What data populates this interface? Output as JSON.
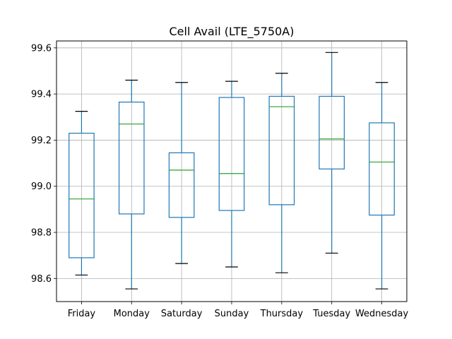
{
  "chart_data": {
    "type": "box",
    "title": "Cell Avail (LTE_5750A)",
    "xlabel": "",
    "ylabel": "",
    "ylim": [
      98.5,
      99.63
    ],
    "yticks": [
      98.6,
      98.8,
      99.0,
      99.2,
      99.4,
      99.6
    ],
    "grid": true,
    "categories": [
      "Friday",
      "Monday",
      "Saturday",
      "Sunday",
      "Thursday",
      "Tuesday",
      "Wednesday"
    ],
    "boxes": [
      {
        "category": "Friday",
        "whisker_low": 98.615,
        "q1": 98.69,
        "median": 98.945,
        "q3": 99.23,
        "whisker_high": 99.325
      },
      {
        "category": "Monday",
        "whisker_low": 98.555,
        "q1": 98.88,
        "median": 99.27,
        "q3": 99.365,
        "whisker_high": 99.46
      },
      {
        "category": "Saturday",
        "whisker_low": 98.665,
        "q1": 98.865,
        "median": 99.07,
        "q3": 99.145,
        "whisker_high": 99.45
      },
      {
        "category": "Sunday",
        "whisker_low": 98.65,
        "q1": 98.895,
        "median": 99.055,
        "q3": 99.385,
        "whisker_high": 99.455
      },
      {
        "category": "Thursday",
        "whisker_low": 98.625,
        "q1": 98.92,
        "median": 99.345,
        "q3": 99.39,
        "whisker_high": 99.49
      },
      {
        "category": "Tuesday",
        "whisker_low": 98.71,
        "q1": 99.075,
        "median": 99.205,
        "q3": 99.39,
        "whisker_high": 99.58
      },
      {
        "category": "Wednesday",
        "whisker_low": 98.555,
        "q1": 98.875,
        "median": 99.105,
        "q3": 99.275,
        "whisker_high": 99.45
      }
    ],
    "colors": {
      "box": "#1f77b4",
      "median": "#2ca02c",
      "cap": "#000000",
      "grid": "#b0b0b0"
    }
  }
}
